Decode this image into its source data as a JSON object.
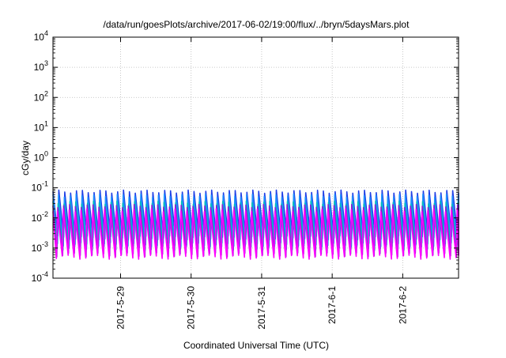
{
  "chart_data": {
    "type": "line",
    "title": "/data/run/goesPlots/archive/2017-06-02/19:00/flux/../bryn/5daysMars.plot",
    "xlabel": "Coordinated Universal Time (UTC)",
    "ylabel": "cGy/day",
    "yscale": "log",
    "ylim_exp": [
      -4,
      4
    ],
    "y_ticks": [
      {
        "base": "10",
        "exp": "-4",
        "value_exp": -4
      },
      {
        "base": "10",
        "exp": "-3",
        "value_exp": -3
      },
      {
        "base": "10",
        "exp": "-2",
        "value_exp": -2
      },
      {
        "base": "10",
        "exp": "-1",
        "value_exp": -1
      },
      {
        "base": "10",
        "exp": "0",
        "value_exp": 0
      },
      {
        "base": "10",
        "exp": "1",
        "value_exp": 1
      },
      {
        "base": "10",
        "exp": "2",
        "value_exp": 2
      },
      {
        "base": "10",
        "exp": "3",
        "value_exp": 3
      },
      {
        "base": "10",
        "exp": "4",
        "value_exp": 4
      }
    ],
    "xlim": [
      "2017-05-28 01:00",
      "2017-06-02 19:00"
    ],
    "x_ticks": [
      "2017-5-29",
      "2017-5-30",
      "2017-5-31",
      "2017-6-1",
      "2017-6-2"
    ],
    "grid": true,
    "periodic_pattern": {
      "cycle_hours": 2,
      "series_peak_min": [
        {
          "peak": 0.075,
          "min": 0.0022
        },
        {
          "peak": 0.055,
          "min": 0.0013
        },
        {
          "peak": 0.032,
          "min": 0.001
        },
        {
          "peak": 0.025,
          "min": 0.0006
        },
        {
          "peak": 0.018,
          "min": 0.0005
        }
      ]
    },
    "series": [
      {
        "color": "#1f3fe6"
      },
      {
        "color": "#1e90ff"
      },
      {
        "color": "#00bcbc"
      },
      {
        "color": "#8a1fd6"
      },
      {
        "color": "#ff00ff"
      }
    ]
  }
}
